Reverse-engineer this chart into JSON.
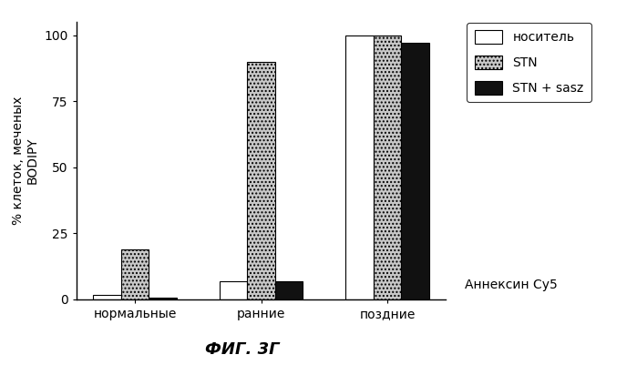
{
  "categories": [
    "нормальные",
    "ранние",
    "поздние"
  ],
  "series": {
    "носитель": [
      1.5,
      7.0,
      100.0
    ],
    "STN": [
      19.0,
      90.0,
      100.0
    ],
    "STN + sasz": [
      0.5,
      7.0,
      97.0
    ]
  },
  "bar_colors": {
    "носитель": "#ffffff",
    "STN": "#c8c8c8",
    "STN + sasz": "#111111"
  },
  "bar_edgecolors": {
    "носитель": "#000000",
    "STN": "#000000",
    "STN + sasz": "#000000"
  },
  "hatch": {
    "носитель": "",
    "STN": "....",
    "STN + sasz": ""
  },
  "ylabel": "% клеток, меченых\nBODIPY",
  "ylim": [
    0,
    105
  ],
  "yticks": [
    0,
    25,
    50,
    75,
    100
  ],
  "annotation": "Аннексин Су5",
  "footer": "ФИГ. 3Г",
  "legend_labels": [
    "носитель",
    "STN",
    "STN + sasz"
  ],
  "bar_width": 0.22,
  "background_color": "#ffffff",
  "fig_width": 6.99,
  "fig_height": 4.01
}
